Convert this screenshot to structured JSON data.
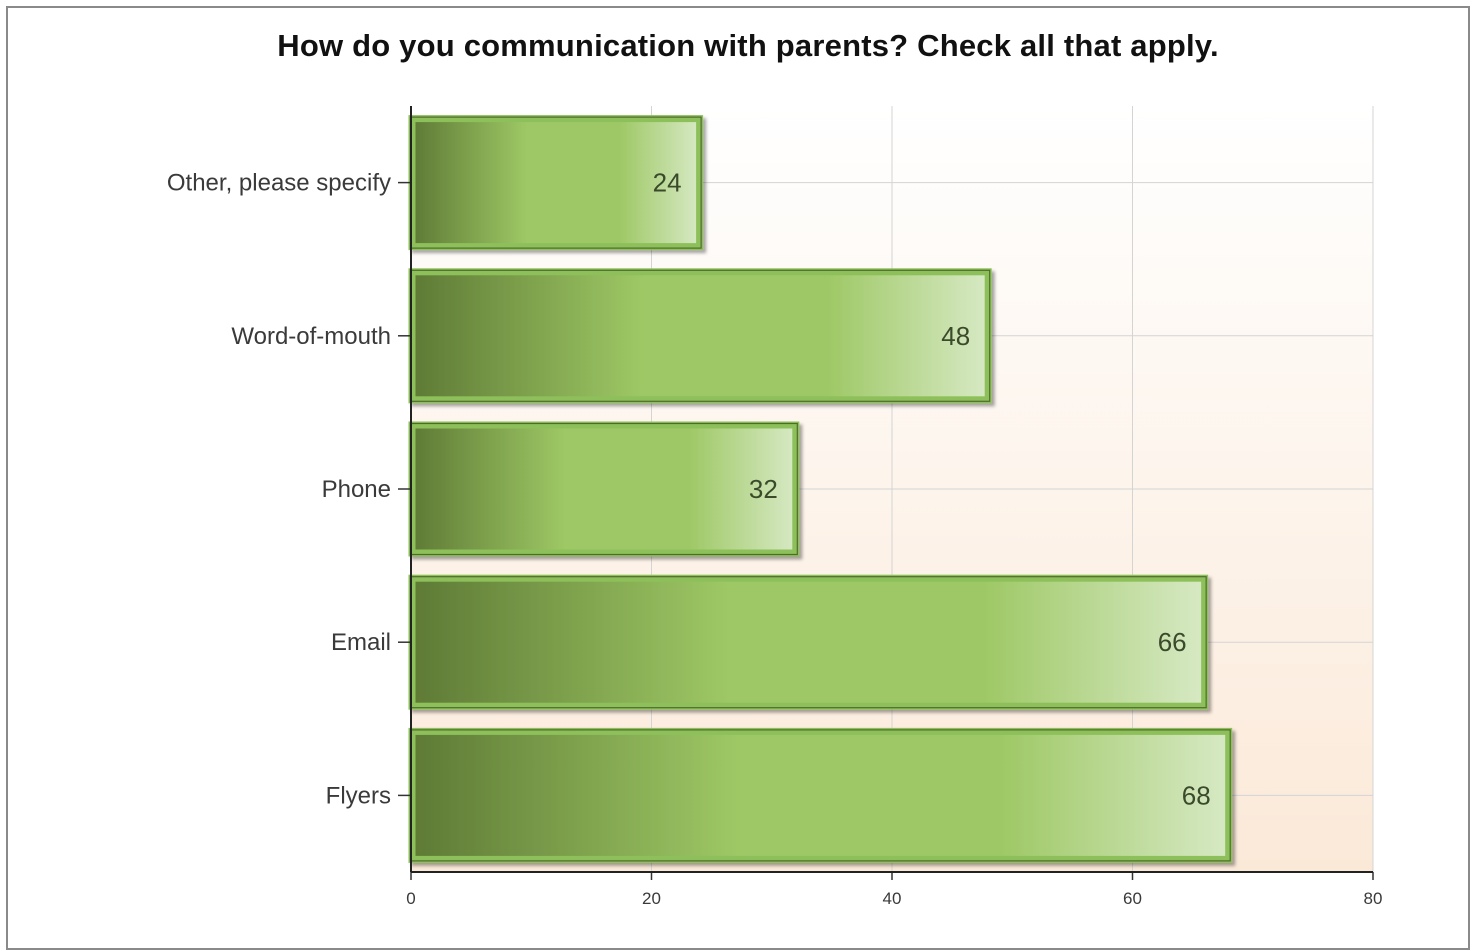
{
  "chart_data": {
    "type": "bar",
    "orientation": "horizontal",
    "title": "How do you communication with parents? Check all that apply.",
    "categories": [
      "Other, please specify",
      "Word-of-mouth",
      "Phone",
      "Email",
      "Flyers"
    ],
    "values": [
      24,
      48,
      32,
      66,
      68
    ],
    "x_ticks": [
      "0",
      "20",
      "40",
      "60",
      "80"
    ],
    "xlim": [
      0,
      80
    ],
    "grid": true,
    "data_labels": true,
    "colors": {
      "bar_dark": "#5e7a35",
      "bar_mid": "#9ec865",
      "bar_light": "#d7e9c4",
      "bar_border": "#8dc05a",
      "plot_bg_top": "#ffffff",
      "plot_bg_bottom": "#fbe9d8"
    }
  }
}
